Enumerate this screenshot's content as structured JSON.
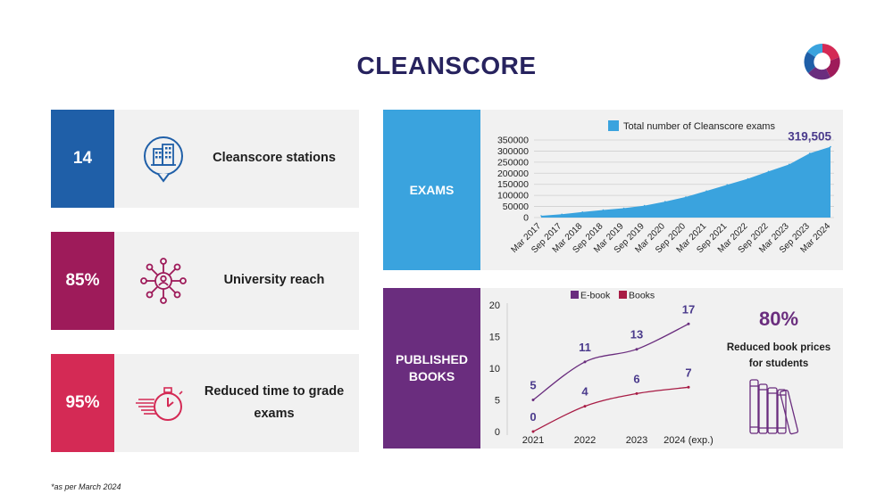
{
  "header": {
    "title": "CLEANSCORE"
  },
  "stats": [
    {
      "value": "14",
      "label": "Cleanscore stations",
      "color": "#1f5fa8",
      "icon": "building-pin-icon"
    },
    {
      "value": "85%",
      "label": "University reach",
      "color": "#9e1b5a",
      "icon": "network-person-icon"
    },
    {
      "value": "95%",
      "label": "Reduced time to grade exams",
      "color": "#d42a55",
      "icon": "stopwatch-icon"
    }
  ],
  "exams_panel": {
    "tag": "EXAMS",
    "color": "#3aa3de"
  },
  "books_panel": {
    "tag": "PUBLISHED BOOKS",
    "color": "#6a2d7e",
    "side_stat": {
      "value": "80%",
      "label_line1": "Reduced book prices",
      "label_line2": "for students",
      "icon": "books-icon"
    }
  },
  "footnote": "*as per March 2024",
  "chart_data": [
    {
      "type": "area",
      "legend": "Total number of Cleanscore exams",
      "legend_position": "top",
      "color": "#3aa3de",
      "x": [
        "Mar 2017",
        "Sep 2017",
        "Mar 2018",
        "Sep 2018",
        "Mar 2019",
        "Sep 2019",
        "Mar 2020",
        "Sep 2020",
        "Mar 2021",
        "Sep 2021",
        "Mar 2022",
        "Sep 2022",
        "Mar 2023",
        "Sep 2023",
        "Mar 2024"
      ],
      "values": [
        8000,
        15000,
        25000,
        34000,
        42000,
        54000,
        72000,
        93000,
        120000,
        148000,
        175000,
        208000,
        240000,
        290000,
        319505
      ],
      "ylim": [
        0,
        350000
      ],
      "yticks": [
        "0",
        "50000",
        "100000",
        "150000",
        "200000",
        "250000",
        "300000",
        "350000"
      ],
      "annotation": "319,505",
      "grid": true
    },
    {
      "type": "line",
      "categories": [
        "2021",
        "2022",
        "2023",
        "2024 (exp.)"
      ],
      "series": [
        {
          "name": "E-book",
          "values": [
            5,
            11,
            13,
            17
          ],
          "color": "#6a2d7e"
        },
        {
          "name": "Books",
          "values": [
            0,
            4,
            6,
            7
          ],
          "color": "#a81c45"
        }
      ],
      "ylim": [
        0,
        20
      ],
      "yticks": [
        "0",
        "5",
        "10",
        "15",
        "20"
      ],
      "legend_position": "top",
      "grid": false
    }
  ]
}
